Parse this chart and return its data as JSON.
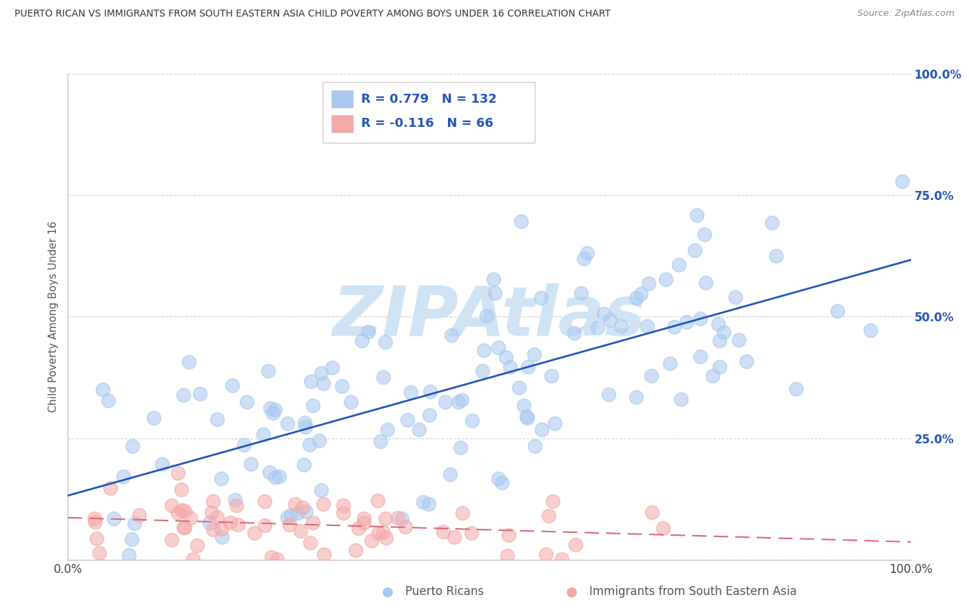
{
  "title": "PUERTO RICAN VS IMMIGRANTS FROM SOUTH EASTERN ASIA CHILD POVERTY AMONG BOYS UNDER 16 CORRELATION CHART",
  "source": "Source: ZipAtlas.com",
  "ylabel": "Child Poverty Among Boys Under 16",
  "legend_label1": "Puerto Ricans",
  "legend_label2": "Immigrants from South Eastern Asia",
  "R1": 0.779,
  "N1": 132,
  "R2": -0.116,
  "N2": 66,
  "blue_scatter_color": "#a8c8f0",
  "pink_scatter_color": "#f4a8a8",
  "blue_line_color": "#2255bb",
  "pink_line_color": "#dd6677",
  "watermark_color": "#d0e4f5",
  "grid_color": "#cccccc",
  "title_color": "#333333",
  "legend_text_color": "#2255bb",
  "right_tick_color": "#2255bb",
  "seed": 7
}
